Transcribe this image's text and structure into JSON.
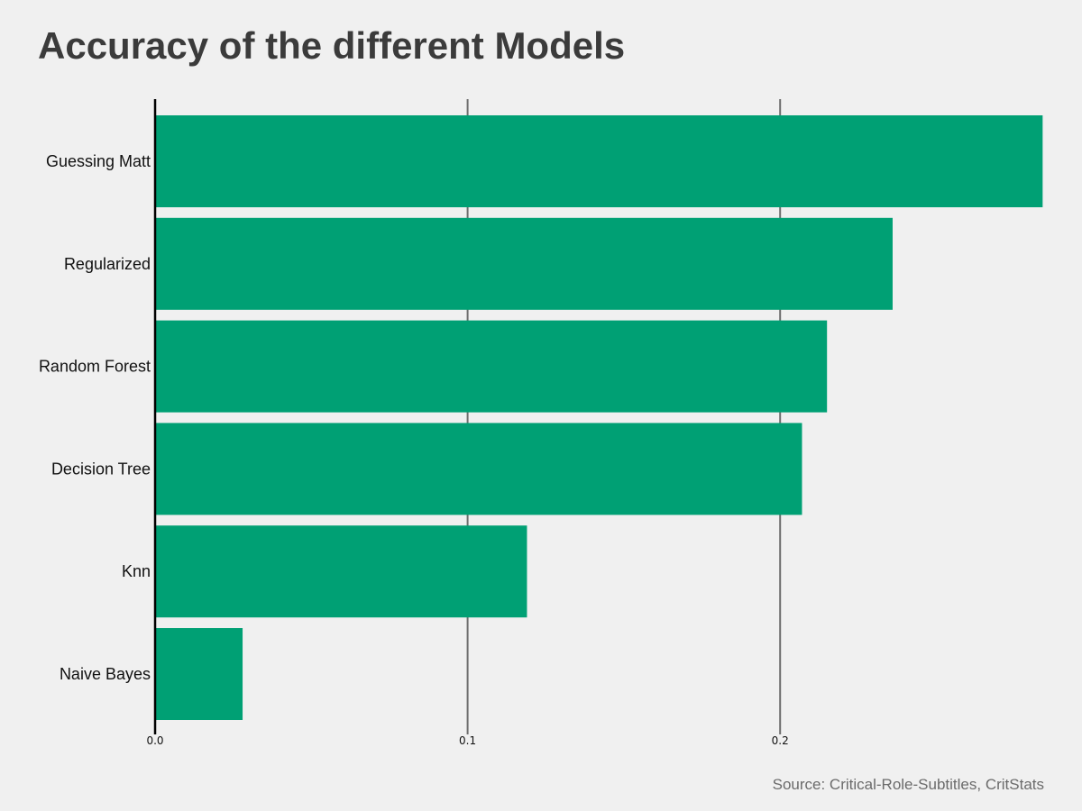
{
  "chart_data": {
    "type": "bar",
    "orientation": "horizontal",
    "title": "Accuracy of the different Models",
    "source": "Source: Critical-Role-Subtitles, CritStats",
    "categories": [
      "Guessing Matt",
      "Regularized",
      "Random Forest",
      "Decision Tree",
      "Knn",
      "Naive Bayes"
    ],
    "values": [
      0.284,
      0.236,
      0.215,
      0.207,
      0.119,
      0.028
    ],
    "xticks": [
      0.0,
      0.1,
      0.2
    ],
    "xtick_labels": [
      "0.0",
      "0.1",
      "0.2"
    ],
    "xlim": [
      0,
      0.285
    ],
    "xlabel": "",
    "ylabel": "",
    "grid": "vertical",
    "legend": "none",
    "bar_color": "#00a074"
  }
}
